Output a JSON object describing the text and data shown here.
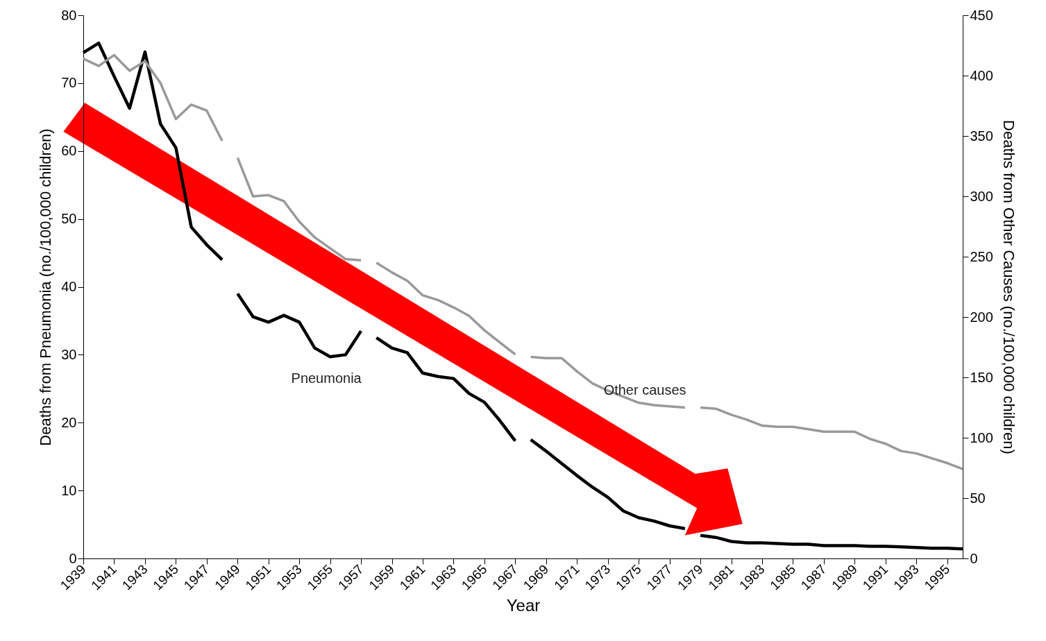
{
  "chart_data": {
    "type": "line",
    "xlabel": "Year",
    "ylabel": "Deaths from Pneumonia (no./100,000 children)",
    "y2label": "Deaths from Other Causes (no./100,000 children)",
    "xlim": [
      1939,
      1996
    ],
    "xticks": [
      1939,
      1941,
      1943,
      1945,
      1947,
      1949,
      1951,
      1953,
      1955,
      1957,
      1959,
      1961,
      1963,
      1965,
      1967,
      1969,
      1971,
      1973,
      1975,
      1977,
      1979,
      1981,
      1983,
      1985,
      1987,
      1989,
      1991,
      1993,
      1995
    ],
    "ylim": [
      0,
      80
    ],
    "yticks": [
      0,
      10,
      20,
      30,
      40,
      50,
      60,
      70,
      80
    ],
    "y2lim": [
      0,
      450
    ],
    "y2ticks": [
      0,
      50,
      100,
      150,
      200,
      250,
      300,
      350,
      400,
      450
    ],
    "grid": false,
    "series": [
      {
        "name": "Pneumonia",
        "color": "#000000",
        "x": [
          1939,
          1940,
          1941,
          1942,
          1943,
          1944,
          1945,
          1946,
          1947,
          1948,
          1948.5,
          1949,
          1950,
          1951,
          1952,
          1953,
          1954,
          1955,
          1956,
          1957,
          1957.5,
          1958,
          1959,
          1960,
          1961,
          1962,
          1963,
          1964,
          1965,
          1966,
          1967,
          1967.5,
          1968,
          1969,
          1970,
          1971,
          1972,
          1973,
          1974,
          1975,
          1976,
          1977,
          1978,
          1978.5,
          1979,
          1980,
          1981,
          1982,
          1983,
          1984,
          1985,
          1986,
          1987,
          1988,
          1989,
          1990,
          1991,
          1992,
          1993,
          1994,
          1995,
          1996
        ],
        "values": [
          74.5,
          75.9,
          71,
          66.3,
          74.6,
          64,
          60.5,
          48.8,
          46.2,
          44,
          null,
          39,
          35.6,
          34.8,
          35.8,
          34.8,
          31,
          29.7,
          30,
          33.5,
          null,
          32.5,
          31,
          30.3,
          27.3,
          26.8,
          26.5,
          24.3,
          23,
          20.3,
          17.3,
          null,
          17.5,
          15.8,
          14,
          12.2,
          10.5,
          9,
          7,
          6,
          5.5,
          4.8,
          4.4,
          null,
          3.4,
          3.1,
          2.5,
          2.3,
          2.3,
          2.2,
          2.1,
          2.1,
          1.9,
          1.9,
          1.9,
          1.8,
          1.8,
          1.7,
          1.6,
          1.5,
          1.5,
          1.4
        ]
      },
      {
        "name": "Other causes",
        "color": "#999999",
        "axis": "y2",
        "x": [
          1939,
          1940,
          1941,
          1942,
          1943,
          1944,
          1945,
          1946,
          1947,
          1948,
          1948.5,
          1949,
          1950,
          1951,
          1952,
          1953,
          1954,
          1955,
          1956,
          1957,
          1957.5,
          1958,
          1959,
          1960,
          1961,
          1962,
          1963,
          1964,
          1965,
          1966,
          1967,
          1967.5,
          1968,
          1969,
          1970,
          1971,
          1972,
          1973,
          1974,
          1975,
          1976,
          1977,
          1978,
          1978.5,
          1979,
          1980,
          1981,
          1982,
          1983,
          1984,
          1985,
          1986,
          1987,
          1988,
          1989,
          1990,
          1991,
          1992,
          1993,
          1994,
          1995,
          1996
        ],
        "values": [
          414,
          408,
          417,
          404,
          412,
          394,
          364,
          376,
          371,
          346,
          null,
          332,
          300,
          301,
          296,
          279,
          266,
          257,
          248,
          247,
          null,
          245,
          237,
          230,
          218,
          214,
          208,
          201,
          189,
          179,
          169,
          null,
          167,
          166,
          166,
          155,
          145,
          139,
          134,
          129,
          127,
          126,
          125,
          null,
          125,
          124,
          119,
          115,
          110,
          109,
          109,
          107,
          105,
          105,
          105,
          99,
          95,
          89,
          87,
          83,
          79,
          74
        ]
      }
    ]
  }
}
